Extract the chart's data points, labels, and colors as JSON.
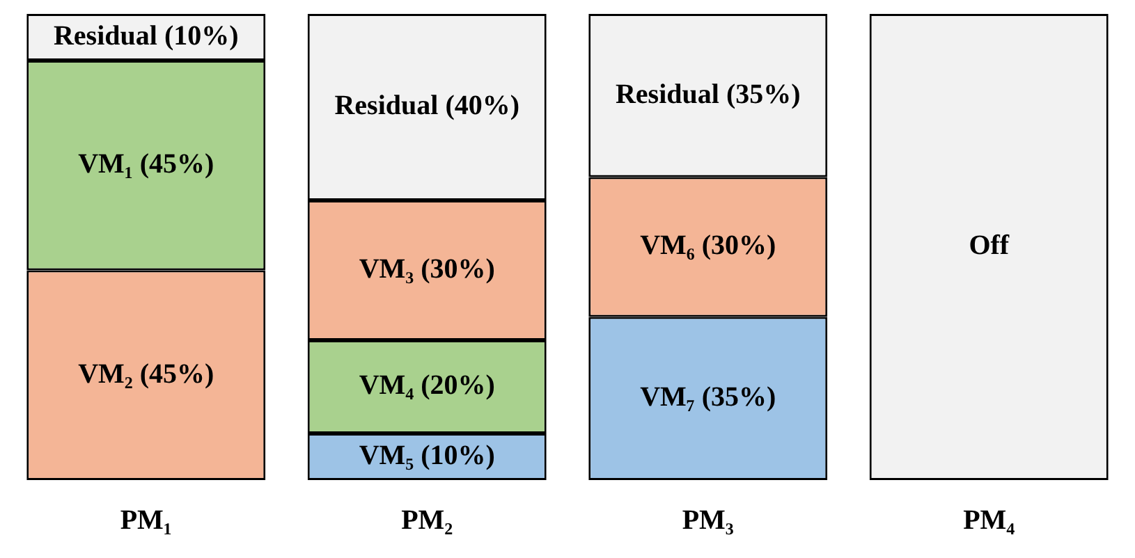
{
  "chart_data": {
    "type": "bar",
    "stacked": true,
    "categories": [
      "PM₁",
      "PM₂",
      "PM₃",
      "PM₄"
    ],
    "series": [
      {
        "values": [
          45,
          10,
          35,
          100
        ],
        "colors": [
          "#f4b596",
          "#9dc3e6",
          "#9dc3e6",
          "#f2f2f2"
        ],
        "value_labels": [
          "VM₂ (45%)",
          "VM₅ (10%)",
          "VM₇ (35%)",
          "Off"
        ]
      },
      {
        "values": [
          45,
          20,
          30,
          null
        ],
        "colors": [
          "#a9d18e",
          "#a9d18e",
          "#f4b596",
          null
        ],
        "value_labels": [
          "VM₁ (45%)",
          "VM₄ (20%)",
          "VM₆ (30%)",
          null
        ]
      },
      {
        "values": [
          10,
          30,
          35,
          null
        ],
        "colors": [
          "#f2f2f2",
          "#f4b596",
          "#f2f2f2",
          null
        ],
        "value_labels": [
          "Residual (10%)",
          "VM₃ (30%)",
          "Residual (35%)",
          null
        ]
      },
      {
        "values": [
          null,
          40,
          null,
          null
        ],
        "colors": [
          null,
          "#f2f2f2",
          null,
          null
        ],
        "value_labels": [
          null,
          "Residual (40%)",
          null,
          null
        ]
      }
    ]
  }
}
